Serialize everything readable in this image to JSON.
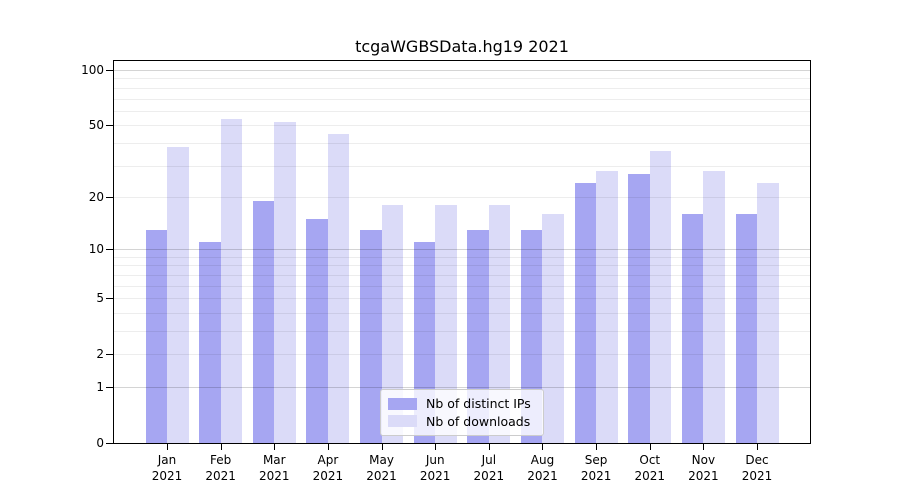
{
  "chart_data": {
    "type": "bar",
    "title": "tcgaWGBSData.hg19 2021",
    "categories": [
      "Jan",
      "Feb",
      "Mar",
      "Apr",
      "May",
      "Jun",
      "Jul",
      "Aug",
      "Sep",
      "Oct",
      "Nov",
      "Dec"
    ],
    "category_year": "2021",
    "series": [
      {
        "name": "Nb of distinct IPs",
        "color": "#a6a6f2",
        "values": [
          13,
          11,
          19,
          15,
          13,
          11,
          13,
          13,
          24,
          27,
          16,
          16
        ]
      },
      {
        "name": "Nb of downloads",
        "color": "#dbdbf8",
        "values": [
          38,
          54,
          52,
          45,
          18,
          18,
          18,
          16,
          28,
          36,
          28,
          24
        ]
      }
    ],
    "y_axis": {
      "scale": "log1p",
      "ticks": [
        0,
        1,
        2,
        5,
        10,
        20,
        50,
        100
      ],
      "major_gridlines": [
        1,
        10,
        100
      ],
      "minor_gridlines": [
        2,
        3,
        4,
        5,
        6,
        7,
        8,
        9,
        20,
        30,
        40,
        50,
        60,
        70,
        80,
        90
      ],
      "ylim": [
        0,
        112
      ]
    },
    "x_axis": {
      "label_line2": "2021"
    },
    "legend": {
      "position": "inside-bottom-center",
      "frame_border": "#cccccc"
    },
    "grid": "on",
    "colors": {
      "axis": "#000000",
      "background": "#ffffff"
    }
  }
}
